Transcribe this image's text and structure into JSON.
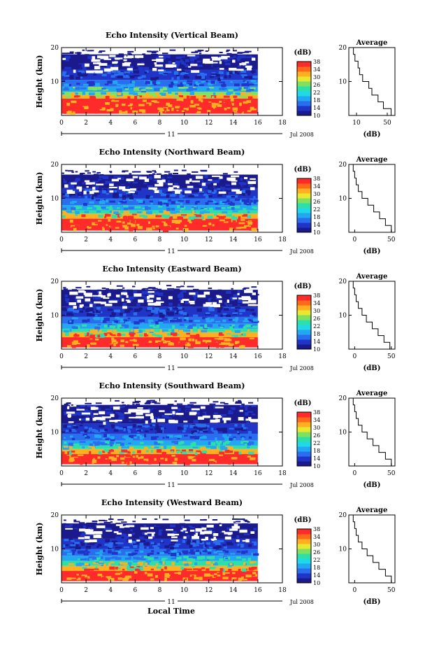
{
  "common": {
    "x_ticks": [
      0,
      2,
      4,
      6,
      8,
      10,
      12,
      14,
      16,
      18
    ],
    "y_ticks": [
      10,
      20
    ],
    "ylabel": "Height (km)",
    "day_label": "11",
    "date_label": "Jul 2008",
    "colorbar_unit": "(dB)",
    "colorbar_ticks": [
      10,
      14,
      18,
      22,
      26,
      30,
      34,
      38
    ],
    "colorbar_colors": [
      "#1a1a8c",
      "#2035c8",
      "#2a6ef0",
      "#22a8f0",
      "#20d8e8",
      "#2ee0a8",
      "#80e060",
      "#e8e830",
      "#ffb020",
      "#ff6a1a",
      "#ff2a2a"
    ],
    "average_title": "Average",
    "average_xlabel": "(dB)",
    "xlabel": "Local Time"
  },
  "chart_data": [
    {
      "type": "heatmap",
      "title": "Echo Intensity (Vertical Beam)",
      "xlim": [
        0,
        18
      ],
      "ylim": [
        0,
        20
      ],
      "data_xlim": [
        0,
        16
      ],
      "avg_ticks": [
        10,
        50
      ],
      "avg_xlim": [
        0,
        60
      ],
      "avg_profile": {
        "height": [
          1,
          3,
          5,
          7,
          9,
          11,
          13,
          15,
          17,
          19
        ],
        "value": [
          55,
          45,
          38,
          30,
          26,
          18,
          14,
          12,
          8,
          6
        ]
      },
      "layers": [
        {
          "top": 5.0,
          "color": "#ff2a2a"
        },
        {
          "top": 6.0,
          "color": "#ffb020"
        },
        {
          "top": 7.0,
          "color": "#80e060"
        },
        {
          "top": 8.5,
          "color": "#22a8f0"
        },
        {
          "top": 10.5,
          "color": "#2a6ef0"
        },
        {
          "top": 13.5,
          "color": "#2035c8"
        },
        {
          "top": 18.0,
          "color": "#1a1a8c"
        }
      ]
    },
    {
      "type": "heatmap",
      "title": "Echo Intensity (Northward Beam)",
      "xlim": [
        0,
        18
      ],
      "ylim": [
        0,
        20
      ],
      "data_xlim": [
        0,
        16
      ],
      "avg_ticks": [
        0,
        50
      ],
      "avg_xlim": [
        -8,
        55
      ],
      "avg_profile": {
        "height": [
          1,
          3,
          5,
          7,
          9,
          11,
          13,
          15,
          17,
          19
        ],
        "value": [
          50,
          42,
          34,
          26,
          18,
          10,
          5,
          2,
          0,
          -2
        ]
      },
      "layers": [
        {
          "top": 4.0,
          "color": "#ff2a2a"
        },
        {
          "top": 5.5,
          "color": "#ffb020"
        },
        {
          "top": 6.5,
          "color": "#2ee0a8"
        },
        {
          "top": 8.0,
          "color": "#22a8f0"
        },
        {
          "top": 10.0,
          "color": "#2a6ef0"
        },
        {
          "top": 13.0,
          "color": "#2035c8"
        },
        {
          "top": 17.0,
          "color": "#1a1a8c"
        }
      ]
    },
    {
      "type": "heatmap",
      "title": "Echo Intensity (Eastward Beam)",
      "xlim": [
        0,
        18
      ],
      "ylim": [
        0,
        20
      ],
      "data_xlim": [
        0,
        16
      ],
      "avg_ticks": [
        0,
        50
      ],
      "avg_xlim": [
        -8,
        55
      ],
      "avg_profile": {
        "height": [
          1,
          3,
          5,
          7,
          9,
          11,
          13,
          15,
          17,
          19
        ],
        "value": [
          48,
          40,
          32,
          24,
          16,
          10,
          5,
          2,
          0,
          -2
        ]
      },
      "layers": [
        {
          "top": 3.5,
          "color": "#ff2a2a"
        },
        {
          "top": 5.0,
          "color": "#ffb020"
        },
        {
          "top": 6.0,
          "color": "#2ee0a8"
        },
        {
          "top": 7.5,
          "color": "#22a8f0"
        },
        {
          "top": 9.5,
          "color": "#2a6ef0"
        },
        {
          "top": 12.5,
          "color": "#2035c8"
        },
        {
          "top": 17.5,
          "color": "#1a1a8c"
        }
      ]
    },
    {
      "type": "heatmap",
      "title": "Echo Intensity (Southward Beam)",
      "xlim": [
        0,
        18
      ],
      "ylim": [
        0,
        20
      ],
      "data_xlim": [
        0,
        16
      ],
      "avg_ticks": [
        0,
        50
      ],
      "avg_xlim": [
        -8,
        55
      ],
      "avg_profile": {
        "height": [
          1,
          3,
          5,
          7,
          9,
          11,
          13,
          15,
          17,
          19
        ],
        "value": [
          50,
          42,
          33,
          25,
          17,
          10,
          5,
          2,
          0,
          -2
        ]
      },
      "layers": [
        {
          "top": 3.5,
          "color": "#ff2a2a"
        },
        {
          "top": 5.0,
          "color": "#ffb020"
        },
        {
          "top": 6.0,
          "color": "#2ee0a8"
        },
        {
          "top": 7.5,
          "color": "#22a8f0"
        },
        {
          "top": 9.5,
          "color": "#2a6ef0"
        },
        {
          "top": 12.5,
          "color": "#2035c8"
        },
        {
          "top": 18.0,
          "color": "#1a1a8c"
        }
      ]
    },
    {
      "type": "heatmap",
      "title": "Echo Intensity (Westward Beam)",
      "xlim": [
        0,
        18
      ],
      "ylim": [
        0,
        20
      ],
      "data_xlim": [
        0,
        16
      ],
      "avg_ticks": [
        0,
        50
      ],
      "avg_xlim": [
        -8,
        55
      ],
      "avg_profile": {
        "height": [
          1,
          3,
          5,
          7,
          9,
          11,
          13,
          15,
          17,
          19
        ],
        "value": [
          50,
          42,
          33,
          25,
          17,
          10,
          5,
          2,
          0,
          -2
        ]
      },
      "layers": [
        {
          "top": 3.5,
          "color": "#ff2a2a"
        },
        {
          "top": 5.0,
          "color": "#ffb020"
        },
        {
          "top": 6.5,
          "color": "#2ee0a8"
        },
        {
          "top": 8.0,
          "color": "#22a8f0"
        },
        {
          "top": 10.0,
          "color": "#2a6ef0"
        },
        {
          "top": 13.0,
          "color": "#2035c8"
        },
        {
          "top": 17.5,
          "color": "#1a1a8c"
        }
      ]
    }
  ]
}
